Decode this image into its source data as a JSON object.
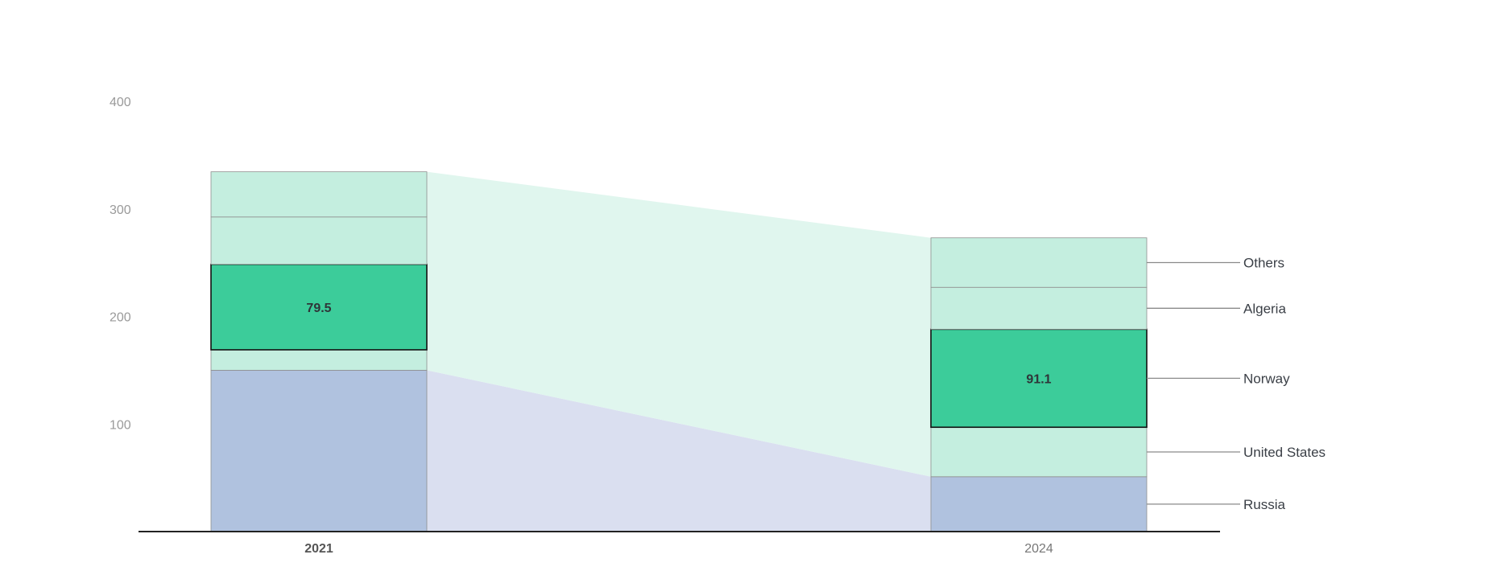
{
  "chart_data": {
    "type": "bar",
    "stacked": true,
    "categories": [
      "2021",
      "2024"
    ],
    "highlighted_category": "2021",
    "series": [
      {
        "name": "Russia",
        "values": [
          150,
          51
        ]
      },
      {
        "name": "United States",
        "values": [
          19,
          46
        ]
      },
      {
        "name": "Norway",
        "values": [
          79.5,
          91.1
        ]
      },
      {
        "name": "Algeria",
        "values": [
          44,
          39
        ]
      },
      {
        "name": "Others",
        "values": [
          42,
          46
        ]
      }
    ],
    "highlighted_series": "Norway",
    "data_labels": [
      "79.5",
      "91.1"
    ],
    "y_ticks": [
      "100",
      "200",
      "300",
      "400"
    ],
    "ylim": [
      0,
      400
    ],
    "grid": false,
    "legend_placement": "right (labels attached to last bar)",
    "colors": {
      "russia": "#b0c2df",
      "russia_connector": "#dadff0",
      "others_group": "#c4eedf",
      "others_connector": "#e0f6ee",
      "highlight": "#3ccc9a",
      "axis": "#222222",
      "tick_text": "#9a9a9a"
    }
  }
}
